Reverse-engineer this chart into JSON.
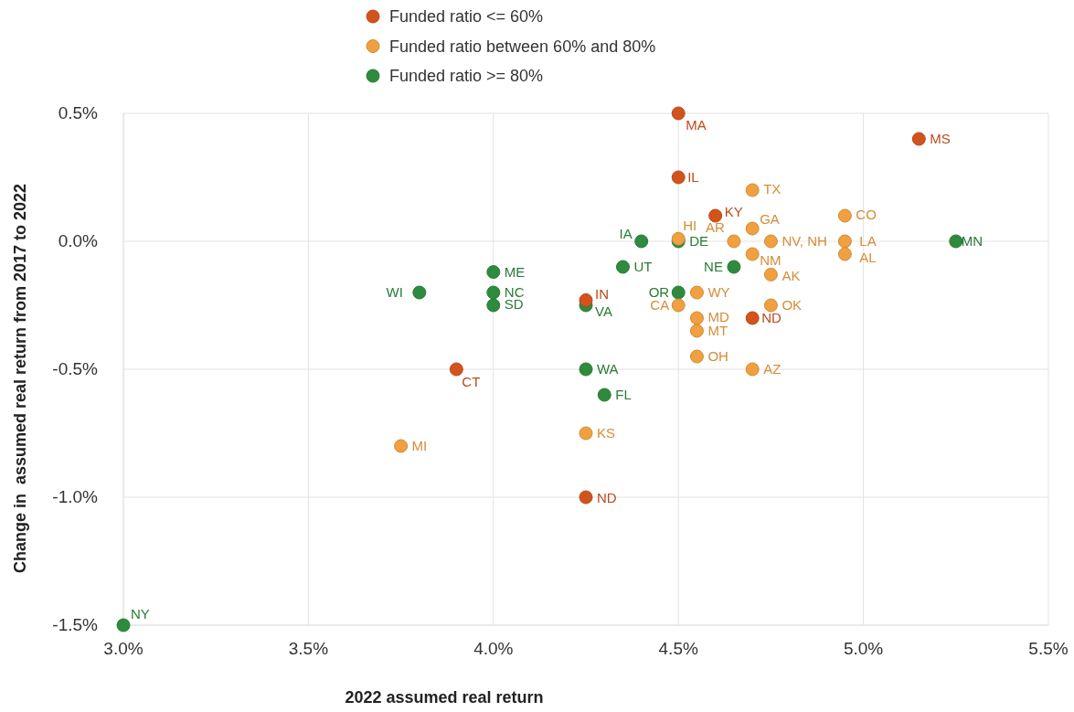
{
  "chart_data": {
    "type": "scatter",
    "xlabel": "2022 assumed real return",
    "ylabel": "Change in  assumed real return from 2017 to 2022",
    "xlim": [
      3.0,
      5.5
    ],
    "xticks": [
      {
        "value": 3.0,
        "label": "3.0%"
      },
      {
        "value": 3.5,
        "label": "3.5%"
      },
      {
        "value": 4.0,
        "label": "4.0%"
      },
      {
        "value": 4.5,
        "label": "4.5%"
      },
      {
        "value": 5.0,
        "label": "5.0%"
      },
      {
        "value": 5.5,
        "label": "5.5%"
      }
    ],
    "ylim": [
      -1.5,
      0.5
    ],
    "yticks": [
      {
        "value": -1.5,
        "label": "-1.5%"
      },
      {
        "value": -1.0,
        "label": "-1.0%"
      },
      {
        "value": -0.5,
        "label": "-0.5%"
      },
      {
        "value": 0,
        "label": "0.0%"
      },
      {
        "value": 0.5,
        "label": "0.5%"
      }
    ],
    "grid": true,
    "legend": "top",
    "marker": "circle",
    "series": [
      {
        "name": "Funded ratio <= 60%",
        "color": "#d2541c",
        "x": [
          4.5,
          5.15,
          4.5,
          4.6,
          4.25,
          3.9,
          4.7,
          4.25
        ],
        "values": [
          0.5,
          0.4,
          0.25,
          0.1,
          -0.23,
          -0.5,
          -0.3,
          -1.0
        ]
      },
      {
        "name": "Funded ratio between 60% and 80%",
        "color": "#f0a040",
        "x": [
          4.7,
          4.95,
          4.5,
          4.65,
          4.7,
          4.75,
          4.95,
          4.95,
          4.7,
          4.75,
          4.55,
          4.5,
          4.75,
          4.55,
          4.55,
          4.55,
          4.7,
          4.25,
          3.75
        ],
        "values": [
          0.2,
          0.1,
          0.01,
          0.0,
          0.05,
          0.0,
          0.0,
          -0.05,
          -0.05,
          -0.13,
          -0.2,
          -0.25,
          -0.25,
          -0.3,
          -0.35,
          -0.45,
          -0.5,
          -0.75,
          -0.8
        ]
      },
      {
        "name": "Funded ratio >= 80%",
        "color": "#2e8b3e",
        "x": [
          4.4,
          4.5,
          5.25,
          4.35,
          4.65,
          4.0,
          3.8,
          4.0,
          4.0,
          4.5,
          4.25,
          4.25,
          4.3,
          3.0
        ],
        "values": [
          0.0,
          0.0,
          0.0,
          -0.1,
          -0.1,
          -0.12,
          -0.2,
          -0.2,
          -0.25,
          -0.2,
          -0.25,
          -0.5,
          -0.6,
          -1.5
        ]
      }
    ],
    "annotations": [
      {
        "text": "MA",
        "x": 4.5,
        "y": 0.5
      },
      {
        "text": "MS",
        "x": 5.15,
        "y": 0.4
      },
      {
        "text": "IL",
        "x": 4.5,
        "y": 0.25
      },
      {
        "text": "KY",
        "x": 4.6,
        "y": 0.1
      },
      {
        "text": "IN",
        "x": 4.25,
        "y": -0.23
      },
      {
        "text": "CT",
        "x": 3.9,
        "y": -0.5
      },
      {
        "text": "ND",
        "x": 4.7,
        "y": -0.3
      },
      {
        "text": "ND",
        "x": 4.25,
        "y": -1.0
      },
      {
        "text": "TX",
        "x": 4.7,
        "y": 0.2
      },
      {
        "text": "CO",
        "x": 4.95,
        "y": 0.1
      },
      {
        "text": "HI",
        "x": 4.5,
        "y": 0.01
      },
      {
        "text": "AR",
        "x": 4.65,
        "y": 0.0
      },
      {
        "text": "GA",
        "x": 4.7,
        "y": 0.05
      },
      {
        "text": "NV, NH",
        "x": 4.75,
        "y": 0.0
      },
      {
        "text": "LA",
        "x": 4.95,
        "y": 0.0
      },
      {
        "text": "AL",
        "x": 4.95,
        "y": -0.05
      },
      {
        "text": "NM",
        "x": 4.7,
        "y": -0.05
      },
      {
        "text": "AK",
        "x": 4.75,
        "y": -0.13
      },
      {
        "text": "WY",
        "x": 4.55,
        "y": -0.2
      },
      {
        "text": "CA",
        "x": 4.5,
        "y": -0.25
      },
      {
        "text": "OK",
        "x": 4.75,
        "y": -0.25
      },
      {
        "text": "MD",
        "x": 4.55,
        "y": -0.3
      },
      {
        "text": "MT",
        "x": 4.55,
        "y": -0.35
      },
      {
        "text": "OH",
        "x": 4.55,
        "y": -0.45
      },
      {
        "text": "AZ",
        "x": 4.7,
        "y": -0.5
      },
      {
        "text": "KS",
        "x": 4.25,
        "y": -0.75
      },
      {
        "text": "MI",
        "x": 3.75,
        "y": -0.8
      },
      {
        "text": "IA",
        "x": 4.4,
        "y": 0.0
      },
      {
        "text": "DE",
        "x": 4.5,
        "y": 0.0
      },
      {
        "text": "MN",
        "x": 5.25,
        "y": 0.0
      },
      {
        "text": "UT",
        "x": 4.35,
        "y": -0.1
      },
      {
        "text": "NE",
        "x": 4.65,
        "y": -0.1
      },
      {
        "text": "ME",
        "x": 4.0,
        "y": -0.12
      },
      {
        "text": "WI",
        "x": 3.8,
        "y": -0.2
      },
      {
        "text": "NC",
        "x": 4.0,
        "y": -0.2
      },
      {
        "text": "SD",
        "x": 4.0,
        "y": -0.25
      },
      {
        "text": "OR",
        "x": 4.5,
        "y": -0.2
      },
      {
        "text": "VA",
        "x": 4.25,
        "y": -0.25
      },
      {
        "text": "WA",
        "x": 4.25,
        "y": -0.5
      },
      {
        "text": "FL",
        "x": 4.3,
        "y": -0.6
      },
      {
        "text": "NY",
        "x": 3.0,
        "y": -1.5
      }
    ]
  }
}
